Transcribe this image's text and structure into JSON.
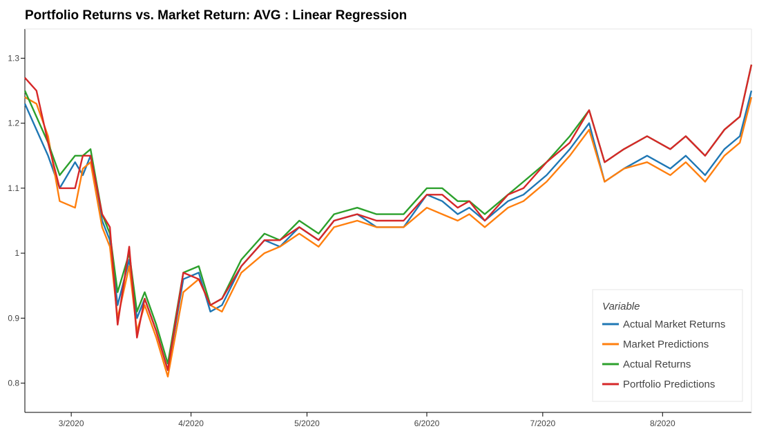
{
  "chart_data": {
    "type": "line",
    "title": "Portfolio Returns vs. Market Return: AVG : Linear Regression",
    "xlabel": "",
    "ylabel": "",
    "x_range": [
      "2020-02-18",
      "2020-08-24"
    ],
    "ylim": [
      0.755,
      1.345
    ],
    "y_ticks": [
      0.8,
      0.9,
      1,
      1.1,
      1.2,
      1.3
    ],
    "y_tick_labels": [
      "0.8",
      "0.9",
      "1",
      "1.1",
      "1.2",
      "1.3"
    ],
    "x_ticks": [
      "2020-03-01",
      "2020-04-01",
      "2020-05-01",
      "2020-06-01",
      "2020-07-01",
      "2020-08-01"
    ],
    "x_tick_labels": [
      "3/2020",
      "4/2020",
      "5/2020",
      "6/2020",
      "7/2020",
      "8/2020"
    ],
    "grid": false,
    "legend": {
      "title": "Variable",
      "placement": "bottom-right"
    },
    "x": [
      "2020-02-18",
      "2020-02-21",
      "2020-02-24",
      "2020-02-27",
      "2020-03-02",
      "2020-03-04",
      "2020-03-06",
      "2020-03-09",
      "2020-03-11",
      "2020-03-13",
      "2020-03-16",
      "2020-03-18",
      "2020-03-20",
      "2020-03-23",
      "2020-03-26",
      "2020-03-30",
      "2020-04-03",
      "2020-04-06",
      "2020-04-09",
      "2020-04-14",
      "2020-04-20",
      "2020-04-24",
      "2020-04-29",
      "2020-05-04",
      "2020-05-08",
      "2020-05-14",
      "2020-05-19",
      "2020-05-26",
      "2020-06-01",
      "2020-06-05",
      "2020-06-09",
      "2020-06-12",
      "2020-06-16",
      "2020-06-22",
      "2020-06-26",
      "2020-07-02",
      "2020-07-08",
      "2020-07-13",
      "2020-07-17",
      "2020-07-22",
      "2020-07-28",
      "2020-08-03",
      "2020-08-07",
      "2020-08-12",
      "2020-08-17",
      "2020-08-21",
      "2020-08-24"
    ],
    "series": [
      {
        "name": "Actual Market Returns",
        "color": "#1f77b4",
        "values": [
          1.23,
          1.19,
          1.15,
          1.1,
          1.14,
          1.12,
          1.15,
          1.05,
          1.02,
          0.92,
          0.99,
          0.9,
          0.93,
          0.88,
          0.82,
          0.96,
          0.97,
          0.91,
          0.92,
          0.98,
          1.02,
          1.01,
          1.04,
          1.02,
          1.05,
          1.06,
          1.04,
          1.04,
          1.09,
          1.08,
          1.06,
          1.07,
          1.05,
          1.08,
          1.09,
          1.12,
          1.16,
          1.2,
          1.11,
          1.13,
          1.15,
          1.13,
          1.15,
          1.12,
          1.16,
          1.18,
          1.25
        ]
      },
      {
        "name": "Market Predictions",
        "color": "#ff7f0e",
        "values": [
          1.24,
          1.23,
          1.18,
          1.08,
          1.07,
          1.13,
          1.14,
          1.04,
          1.01,
          0.9,
          0.98,
          0.88,
          0.92,
          0.87,
          0.81,
          0.94,
          0.96,
          0.92,
          0.91,
          0.97,
          1.0,
          1.01,
          1.03,
          1.01,
          1.04,
          1.05,
          1.04,
          1.04,
          1.07,
          1.06,
          1.05,
          1.06,
          1.04,
          1.07,
          1.08,
          1.11,
          1.15,
          1.19,
          1.11,
          1.13,
          1.14,
          1.12,
          1.14,
          1.11,
          1.15,
          1.17,
          1.24
        ]
      },
      {
        "name": "Actual Returns",
        "color": "#2ca02c",
        "values": [
          1.25,
          1.21,
          1.17,
          1.12,
          1.15,
          1.15,
          1.16,
          1.06,
          1.03,
          0.94,
          1.0,
          0.91,
          0.94,
          0.89,
          0.83,
          0.97,
          0.98,
          0.92,
          0.93,
          0.99,
          1.03,
          1.02,
          1.05,
          1.03,
          1.06,
          1.07,
          1.06,
          1.06,
          1.1,
          1.1,
          1.08,
          1.08,
          1.06,
          1.09,
          1.11,
          1.14,
          1.18,
          1.22,
          1.14,
          1.16,
          1.18,
          1.16,
          1.18,
          1.15,
          1.19,
          1.21,
          1.29
        ]
      },
      {
        "name": "Portfolio Predictions",
        "color": "#d62728",
        "values": [
          1.27,
          1.25,
          1.17,
          1.1,
          1.1,
          1.15,
          1.15,
          1.06,
          1.04,
          0.89,
          1.01,
          0.87,
          0.93,
          0.88,
          0.82,
          0.97,
          0.96,
          0.92,
          0.93,
          0.98,
          1.02,
          1.02,
          1.04,
          1.02,
          1.05,
          1.06,
          1.05,
          1.05,
          1.09,
          1.09,
          1.07,
          1.08,
          1.05,
          1.09,
          1.1,
          1.14,
          1.17,
          1.22,
          1.14,
          1.16,
          1.18,
          1.16,
          1.18,
          1.15,
          1.19,
          1.21,
          1.29
        ]
      }
    ]
  }
}
